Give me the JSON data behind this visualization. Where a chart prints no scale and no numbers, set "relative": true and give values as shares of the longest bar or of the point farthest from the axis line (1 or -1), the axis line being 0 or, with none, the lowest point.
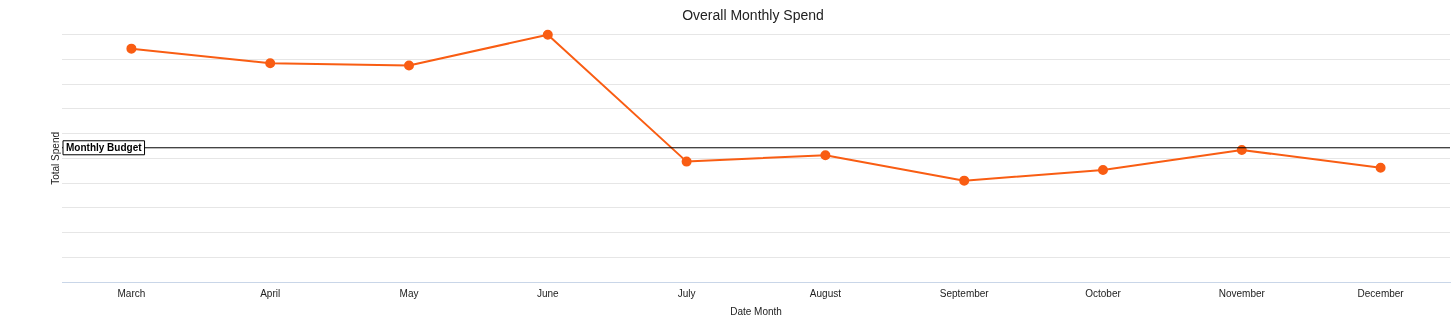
{
  "chart_data": {
    "type": "line",
    "title": "Overall Monthly Spend",
    "xlabel": "Date Month",
    "ylabel": "Total Spend",
    "relative": true,
    "grid": "y",
    "marker": "circle",
    "line_style": "solid",
    "categories": [
      "March",
      "April",
      "May",
      "June",
      "July",
      "August",
      "September",
      "October",
      "November",
      "December"
    ],
    "series": [
      {
        "color": "#f95d13",
        "values": [
          0.944,
          0.885,
          0.876,
          1,
          0.487,
          0.513,
          0.41,
          0.453,
          0.534,
          0.462
        ]
      }
    ],
    "ref_lines": [
      {
        "axis": "y",
        "value": 0.543,
        "label": "Monthly Budget",
        "color": "#000000"
      }
    ]
  }
}
